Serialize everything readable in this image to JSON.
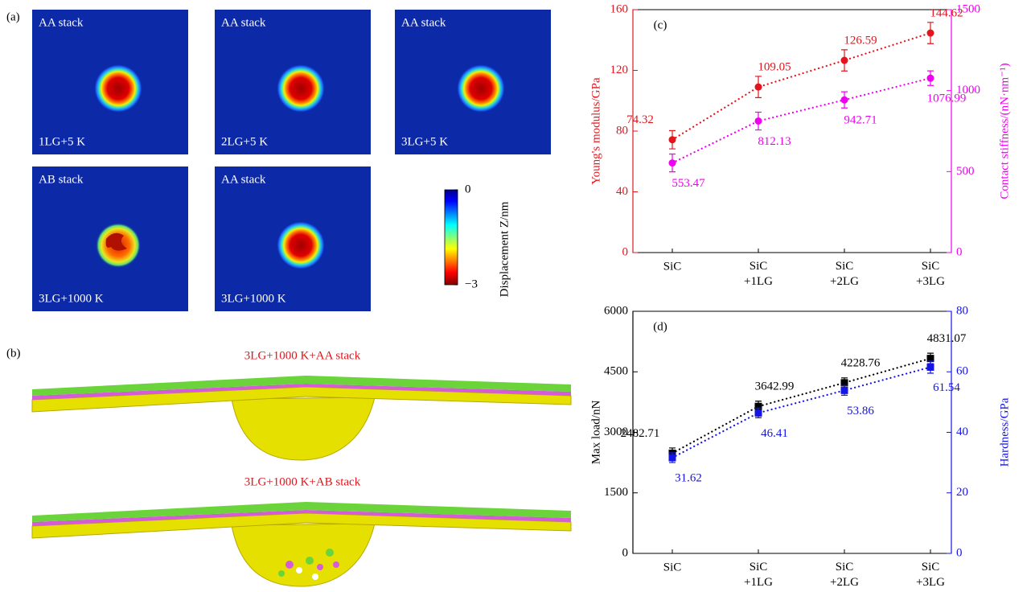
{
  "panel_a": {
    "label": "(a)",
    "images": [
      {
        "top": "AA stack",
        "bottom": "1LG+5 K"
      },
      {
        "top": "AA stack",
        "bottom": "2LG+5 K"
      },
      {
        "top": "AA stack",
        "bottom": "3LG+5 K"
      },
      {
        "top": "AB stack",
        "bottom": "3LG+1000 K"
      },
      {
        "top": "AA stack",
        "bottom": "3LG+1000 K"
      }
    ],
    "colorbar": {
      "label": "Displacement Z/nm",
      "lim": [
        -3,
        0
      ],
      "ticks": [
        0,
        {
          "value": -3,
          "label": "−3"
        }
      ]
    }
  },
  "panel_b": {
    "label": "(b)",
    "titles": [
      "3LG+1000 K+AA stack",
      "3LG+1000 K+AB stack"
    ]
  },
  "chart_data": [
    {
      "type": "line",
      "label": "(c)",
      "categories": [
        "SiC",
        "SiC\n+1LG",
        "SiC\n+2LG",
        "SiC\n+3LG"
      ],
      "y_label": "Young's modulus/GPa",
      "y2_label": "Contact stiffness/(nN·nm⁻¹)",
      "ylim": [
        0,
        160
      ],
      "yticks": [
        0,
        40,
        80,
        120,
        160
      ],
      "y2lim": [
        0,
        1500
      ],
      "y2ticks": [
        0,
        500,
        1000,
        1500
      ],
      "series": [
        {
          "color": "#e3141c",
          "marker": "circle",
          "values": [
            74.32,
            109.05,
            126.59,
            144.62
          ],
          "errors": [
            6,
            7,
            7,
            7
          ]
        },
        {
          "color": "#f000f0",
          "marker": "circle",
          "axis": "y2",
          "values": [
            553.47,
            812.13,
            942.71,
            1076.99
          ],
          "errors": [
            55,
            55,
            50,
            45
          ]
        }
      ]
    },
    {
      "type": "line",
      "label": "(d)",
      "categories": [
        "SiC",
        "SiC\n+1LG",
        "SiC\n+2LG",
        "SiC\n+3LG"
      ],
      "y_label": "Max load/nN",
      "y2_label": "Hardness/GPa",
      "ylim": [
        0,
        6000
      ],
      "yticks": [
        0,
        1500,
        3000,
        4500,
        6000
      ],
      "y2lim": [
        0,
        80
      ],
      "y2ticks": [
        0,
        20,
        40,
        60,
        80
      ],
      "series": [
        {
          "color": "#000000",
          "marker": "square",
          "values": [
            2482.71,
            3642.99,
            4228.76,
            4831.07
          ],
          "errors": [
            130,
            130,
            120,
            130
          ]
        },
        {
          "color": "#1414e6",
          "marker": "square",
          "axis": "y2",
          "values": [
            31.62,
            46.41,
            53.86,
            61.54
          ],
          "errors": [
            1.6,
            1.6,
            1.6,
            2
          ]
        }
      ]
    }
  ]
}
